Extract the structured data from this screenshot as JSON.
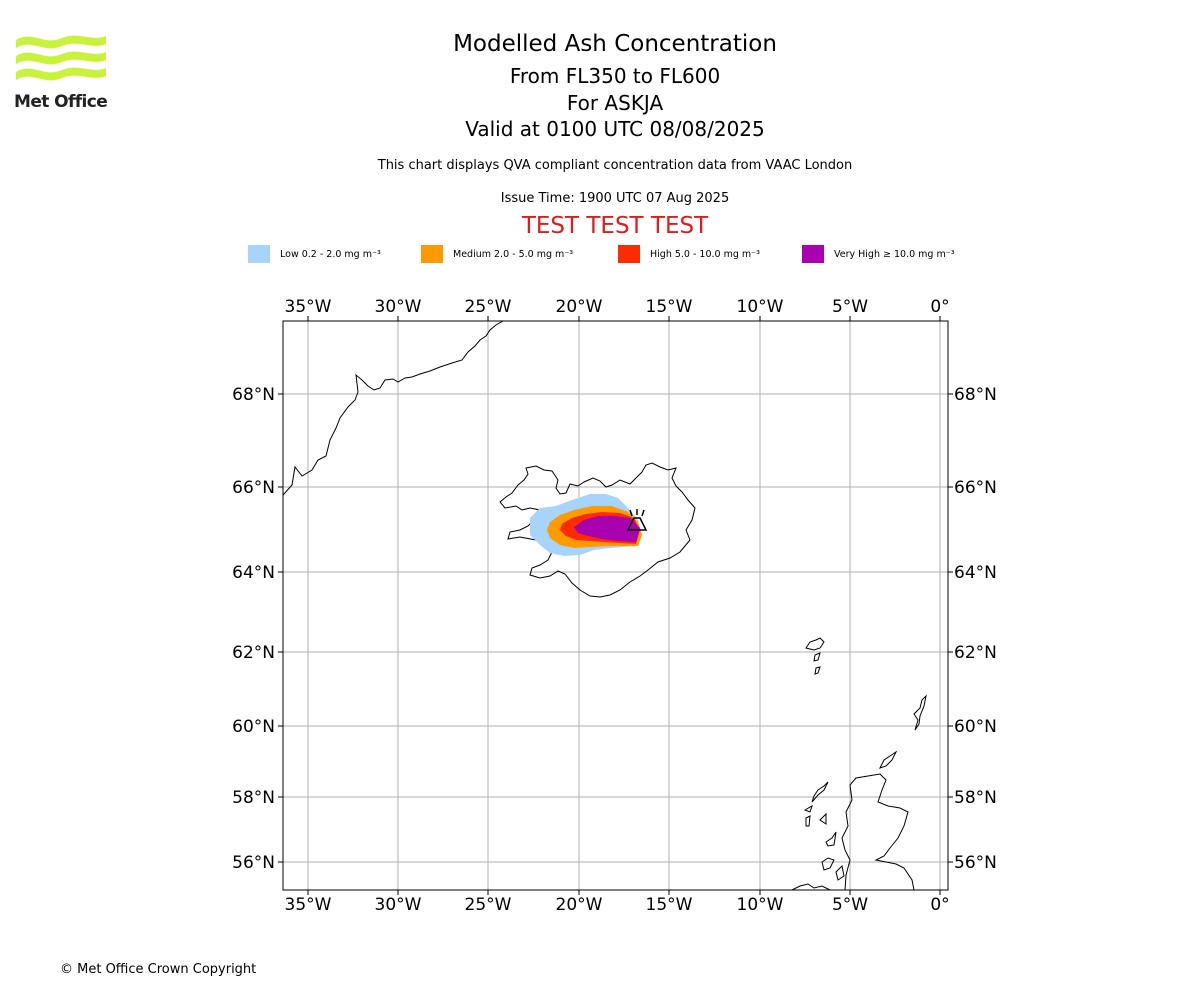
{
  "header": {
    "logo_text": "Met Office",
    "title": "Modelled Ash Concentration",
    "subtitle_levels": "From FL350 to FL600",
    "subtitle_volcano": "For ASKJA",
    "subtitle_valid": "Valid at 0100 UTC 08/08/2025",
    "note": "This chart displays QVA compliant concentration data from VAAC London",
    "issue_time": "Issue Time: 1900 UTC 07 Aug 2025",
    "warning": "TEST TEST TEST"
  },
  "legend": [
    {
      "label": "Low 0.2 - 2.0 mg m⁻³",
      "color": "#a6d4fb"
    },
    {
      "label": "Medium 2.0 - 5.0 mg m⁻³",
      "color": "#ff9a00"
    },
    {
      "label": "High 5.0 - 10.0 mg m⁻³",
      "color": "#ff2b00"
    },
    {
      "label": "Very High  ≥  10.0 mg m⁻³",
      "color": "#a900b0"
    }
  ],
  "map": {
    "lon_ticks": [
      "35°W",
      "30°W",
      "25°W",
      "20°W",
      "15°W",
      "10°W",
      "5°W",
      "0°"
    ],
    "lat_ticks": [
      "68°N",
      "66°N",
      "64°N",
      "62°N",
      "60°N",
      "58°N",
      "56°N"
    ],
    "volcano_icon": "volcano-icon",
    "coast_color": "#000000",
    "grid_color": "#b0b0b0"
  },
  "footer": {
    "copyright": "© Met Office Crown Copyright"
  }
}
